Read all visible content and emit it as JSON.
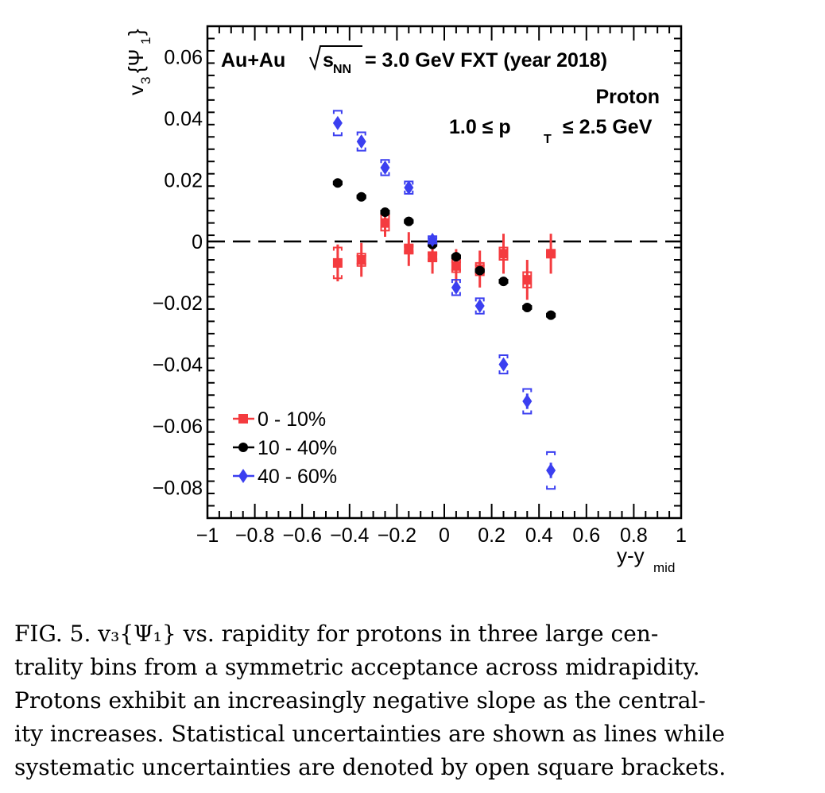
{
  "chart_data": {
    "type": "scatter",
    "title": "",
    "annotations": {
      "system": "Au+Au",
      "energy_prefix": "s",
      "energy_sub": "NN",
      "energy_suffix": "= 3.0 GeV FXT (year 2018)",
      "particle": "Proton",
      "pt_range_prefix": "1.0  ≤ p",
      "pt_range_sub": "T",
      "pt_range_suffix": "≤ 2.5 GeV"
    },
    "ylabel_main": "v",
    "ylabel_sub": "3",
    "ylabel_brace": "{Ψ",
    "ylabel_brace_sub": "1",
    "ylabel_close": "}",
    "xlabel_main": "y-y",
    "xlabel_sub": "mid",
    "xlim": [
      -1,
      1
    ],
    "ylim": [
      -0.09,
      0.07
    ],
    "x_ticks": [
      {
        "v": -1,
        "label": "−1"
      },
      {
        "v": -0.8,
        "label": "−0.8"
      },
      {
        "v": -0.6,
        "label": "−0.6"
      },
      {
        "v": -0.4,
        "label": "−0.4"
      },
      {
        "v": -0.2,
        "label": "−0.2"
      },
      {
        "v": 0,
        "label": "0"
      },
      {
        "v": 0.2,
        "label": "0.2"
      },
      {
        "v": 0.4,
        "label": "0.4"
      },
      {
        "v": 0.6,
        "label": "0.6"
      },
      {
        "v": 0.8,
        "label": "0.8"
      },
      {
        "v": 1,
        "label": "1"
      }
    ],
    "y_ticks": [
      {
        "v": 0.06,
        "label": "0.06"
      },
      {
        "v": 0.04,
        "label": "0.04"
      },
      {
        "v": 0.02,
        "label": "0.02"
      },
      {
        "v": 0,
        "label": "0"
      },
      {
        "v": -0.02,
        "label": "−0.02"
      },
      {
        "v": -0.04,
        "label": "−0.04"
      },
      {
        "v": -0.06,
        "label": "−0.06"
      },
      {
        "v": -0.08,
        "label": "−0.08"
      }
    ],
    "reference_line_y": 0,
    "legend_position": "bottom-left",
    "series": [
      {
        "name": "0 - 10%",
        "marker": "square",
        "color": "#f43b3f",
        "x": [
          -0.45,
          -0.35,
          -0.25,
          -0.15,
          -0.05,
          0.05,
          0.15,
          0.25,
          0.35,
          0.45
        ],
        "y": [
          -0.007,
          -0.006,
          0.006,
          -0.0025,
          -0.005,
          -0.008,
          -0.009,
          -0.004,
          -0.0125,
          -0.004
        ],
        "stat_err": [
          0.006,
          0.0055,
          0.0045,
          0.0055,
          0.0055,
          0.0055,
          0.006,
          0.0065,
          0.0065,
          0.0065
        ],
        "sys_err": [
          0.005,
          0.002,
          0.0025,
          0.0015,
          0.0015,
          0.002,
          0.002,
          0.002,
          0.0025,
          0.001
        ]
      },
      {
        "name": "10 - 40%",
        "marker": "circle",
        "color": "#000000",
        "x": [
          -0.45,
          -0.35,
          -0.25,
          -0.15,
          -0.05,
          0.05,
          0.15,
          0.25,
          0.35,
          0.45
        ],
        "y": [
          0.019,
          0.0145,
          0.0095,
          0.0065,
          -0.001,
          -0.005,
          -0.0095,
          -0.013,
          -0.0215,
          -0.024
        ],
        "stat_err": [
          0.0008,
          0.0008,
          0.0008,
          0.0008,
          0.0008,
          0.0008,
          0.0008,
          0.0008,
          0.0008,
          0.0008
        ],
        "sys_err": [
          0.0005,
          0.0005,
          0.0005,
          0.0005,
          0.0005,
          0.0005,
          0.0005,
          0.0005,
          0.0005,
          0.0005
        ]
      },
      {
        "name": "40 - 60%",
        "marker": "diamond",
        "color": "#3b3ff0",
        "x": [
          -0.45,
          -0.35,
          -0.25,
          -0.15,
          -0.05,
          0.05,
          0.15,
          0.25,
          0.35,
          0.45
        ],
        "y": [
          0.0385,
          0.0325,
          0.024,
          0.0175,
          0.0005,
          -0.015,
          -0.021,
          -0.04,
          -0.052,
          -0.0745
        ],
        "stat_err": [
          0.0015,
          0.0018,
          0.0018,
          0.0015,
          0.0015,
          0.0015,
          0.0015,
          0.0018,
          0.0025,
          0.0025
        ],
        "sys_err": [
          0.004,
          0.003,
          0.0025,
          0.002,
          0.0012,
          0.0025,
          0.0025,
          0.003,
          0.004,
          0.006
        ]
      }
    ]
  },
  "caption": {
    "lines": [
      "FIG. 5.  v₃{Ψ₁} vs.  rapidity for protons in three large cen-",
      "trality bins from a symmetric acceptance across midrapidity.",
      "Protons exhibit an increasingly negative slope as the central-",
      "ity increases. Statistical uncertainties are shown as lines while",
      "systematic uncertainties are denoted by open square brackets."
    ]
  }
}
